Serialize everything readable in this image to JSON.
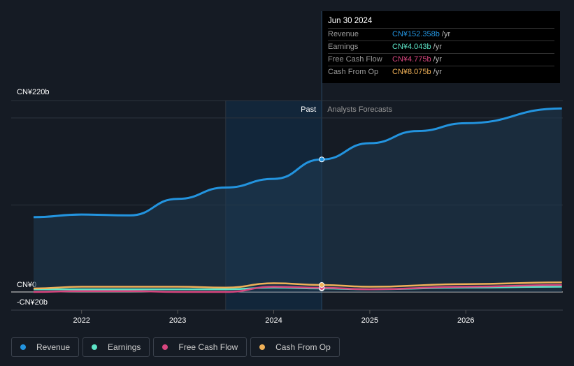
{
  "tooltip": {
    "date": "Jun 30 2024",
    "rows": [
      {
        "label": "Revenue",
        "value": "CN¥152.358b",
        "unit": "/yr",
        "color": "#2394df"
      },
      {
        "label": "Earnings",
        "value": "CN¥4.043b",
        "unit": "/yr",
        "color": "#5de4c7"
      },
      {
        "label": "Free Cash Flow",
        "value": "CN¥4.775b",
        "unit": "/yr",
        "color": "#d8467f"
      },
      {
        "label": "Cash From Op",
        "value": "CN¥8.075b",
        "unit": "/yr",
        "color": "#f0b158"
      }
    ]
  },
  "chart_data": {
    "type": "line",
    "ylim": [
      -20,
      220
    ],
    "xlim": [
      2021.5,
      2027.0
    ],
    "y_tick_labels": [
      "CN¥220b",
      "CN¥0",
      "-CN¥20b"
    ],
    "x_tick_labels": [
      "2022",
      "2023",
      "2024",
      "2025",
      "2026"
    ],
    "past_label": "Past",
    "forecast_label": "Analysts Forecasts",
    "past_end": 2024.5,
    "series": [
      {
        "name": "Revenue",
        "color": "#2394df",
        "x": [
          2021.5,
          2022,
          2022.5,
          2023,
          2023.5,
          2024,
          2024.5,
          2025,
          2025.5,
          2026,
          2027
        ],
        "y": [
          86,
          89,
          88,
          107,
          120,
          130,
          152.358,
          171,
          185,
          194,
          211
        ]
      },
      {
        "name": "Earnings",
        "color": "#5de4c7",
        "x": [
          2021.5,
          2022,
          2022.5,
          2023,
          2023.5,
          2024,
          2024.5,
          2025,
          2026,
          2027
        ],
        "y": [
          3,
          3,
          3,
          3,
          3,
          5,
          4.043,
          3,
          5,
          6
        ]
      },
      {
        "name": "Free Cash Flow",
        "color": "#d8467f",
        "x": [
          2021.5,
          2022,
          2022.5,
          2023,
          2023.5,
          2024,
          2024.5,
          2025,
          2026,
          2027
        ],
        "y": [
          0,
          1,
          1,
          0,
          0,
          6,
          4.775,
          3,
          6,
          8
        ]
      },
      {
        "name": "Cash From Op",
        "color": "#f0b158",
        "x": [
          2021.5,
          2022,
          2022.5,
          2023,
          2023.5,
          2024,
          2024.5,
          2025,
          2026,
          2027
        ],
        "y": [
          4,
          6,
          6,
          6,
          5,
          10,
          8.075,
          6,
          9,
          11
        ]
      }
    ]
  }
}
